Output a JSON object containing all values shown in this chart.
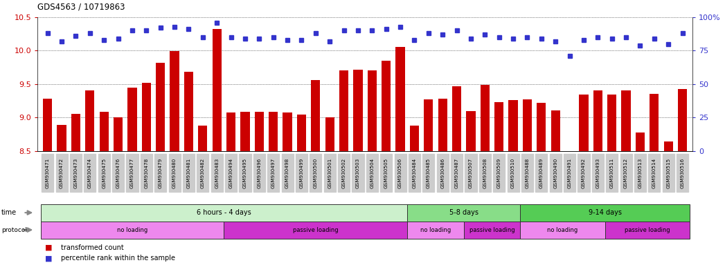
{
  "title": "GDS4563 / 10719863",
  "samples": [
    "GSM930471",
    "GSM930472",
    "GSM930473",
    "GSM930474",
    "GSM930475",
    "GSM930476",
    "GSM930477",
    "GSM930478",
    "GSM930479",
    "GSM930480",
    "GSM930481",
    "GSM930482",
    "GSM930483",
    "GSM930494",
    "GSM930495",
    "GSM930496",
    "GSM930497",
    "GSM930498",
    "GSM930499",
    "GSM930500",
    "GSM930501",
    "GSM930502",
    "GSM930503",
    "GSM930504",
    "GSM930505",
    "GSM930506",
    "GSM930484",
    "GSM930485",
    "GSM930486",
    "GSM930487",
    "GSM930507",
    "GSM930508",
    "GSM930509",
    "GSM930510",
    "GSM930488",
    "GSM930489",
    "GSM930490",
    "GSM930491",
    "GSM930492",
    "GSM930493",
    "GSM930511",
    "GSM930512",
    "GSM930513",
    "GSM930514",
    "GSM930515",
    "GSM930516"
  ],
  "bar_values": [
    9.28,
    8.89,
    9.06,
    9.41,
    9.09,
    9.0,
    9.45,
    9.52,
    9.82,
    9.99,
    9.68,
    8.88,
    10.32,
    9.08,
    9.09,
    9.09,
    9.09,
    9.08,
    9.05,
    9.56,
    9.0,
    9.71,
    9.72,
    9.71,
    9.85,
    10.06,
    8.88,
    9.27,
    9.28,
    9.47,
    9.1,
    9.49,
    9.23,
    9.26,
    9.27,
    9.22,
    9.11,
    8.5,
    9.34,
    9.41,
    9.34,
    9.41,
    8.78,
    9.35,
    8.64,
    9.43
  ],
  "percentile_values": [
    88,
    82,
    86,
    88,
    83,
    84,
    90,
    90,
    92,
    93,
    91,
    85,
    96,
    85,
    84,
    84,
    85,
    83,
    83,
    88,
    82,
    90,
    90,
    90,
    91,
    93,
    83,
    88,
    87,
    90,
    84,
    87,
    85,
    84,
    85,
    84,
    82,
    71,
    83,
    85,
    84,
    85,
    79,
    84,
    80,
    88
  ],
  "bar_color": "#cc0000",
  "percentile_color": "#3333cc",
  "ylim_left": [
    8.5,
    10.5
  ],
  "ylim_right": [
    0,
    100
  ],
  "yticks_left": [
    8.5,
    9.0,
    9.5,
    10.0,
    10.5
  ],
  "yticks_right": [
    0,
    25,
    50,
    75,
    100
  ],
  "ytick_labels_right": [
    "0",
    "25",
    "50",
    "75",
    "100%"
  ],
  "grid_values": [
    9.0,
    9.5,
    10.0,
    10.5
  ],
  "time_groups": [
    {
      "label": "6 hours - 4 days",
      "start": 0,
      "end": 25,
      "color": "#ccf0cc"
    },
    {
      "label": "5-8 days",
      "start": 26,
      "end": 33,
      "color": "#88dd88"
    },
    {
      "label": "9-14 days",
      "start": 34,
      "end": 45,
      "color": "#55cc55"
    }
  ],
  "protocol_groups": [
    {
      "label": "no loading",
      "start": 0,
      "end": 12,
      "color": "#ee88ee"
    },
    {
      "label": "passive loading",
      "start": 13,
      "end": 25,
      "color": "#cc33cc"
    },
    {
      "label": "no loading",
      "start": 26,
      "end": 29,
      "color": "#ee88ee"
    },
    {
      "label": "passive loading",
      "start": 30,
      "end": 33,
      "color": "#cc33cc"
    },
    {
      "label": "no loading",
      "start": 34,
      "end": 39,
      "color": "#ee88ee"
    },
    {
      "label": "passive loading",
      "start": 40,
      "end": 45,
      "color": "#cc33cc"
    }
  ],
  "background_color": "#ffffff",
  "tick_bg_color": "#cccccc",
  "n_samples": 46
}
